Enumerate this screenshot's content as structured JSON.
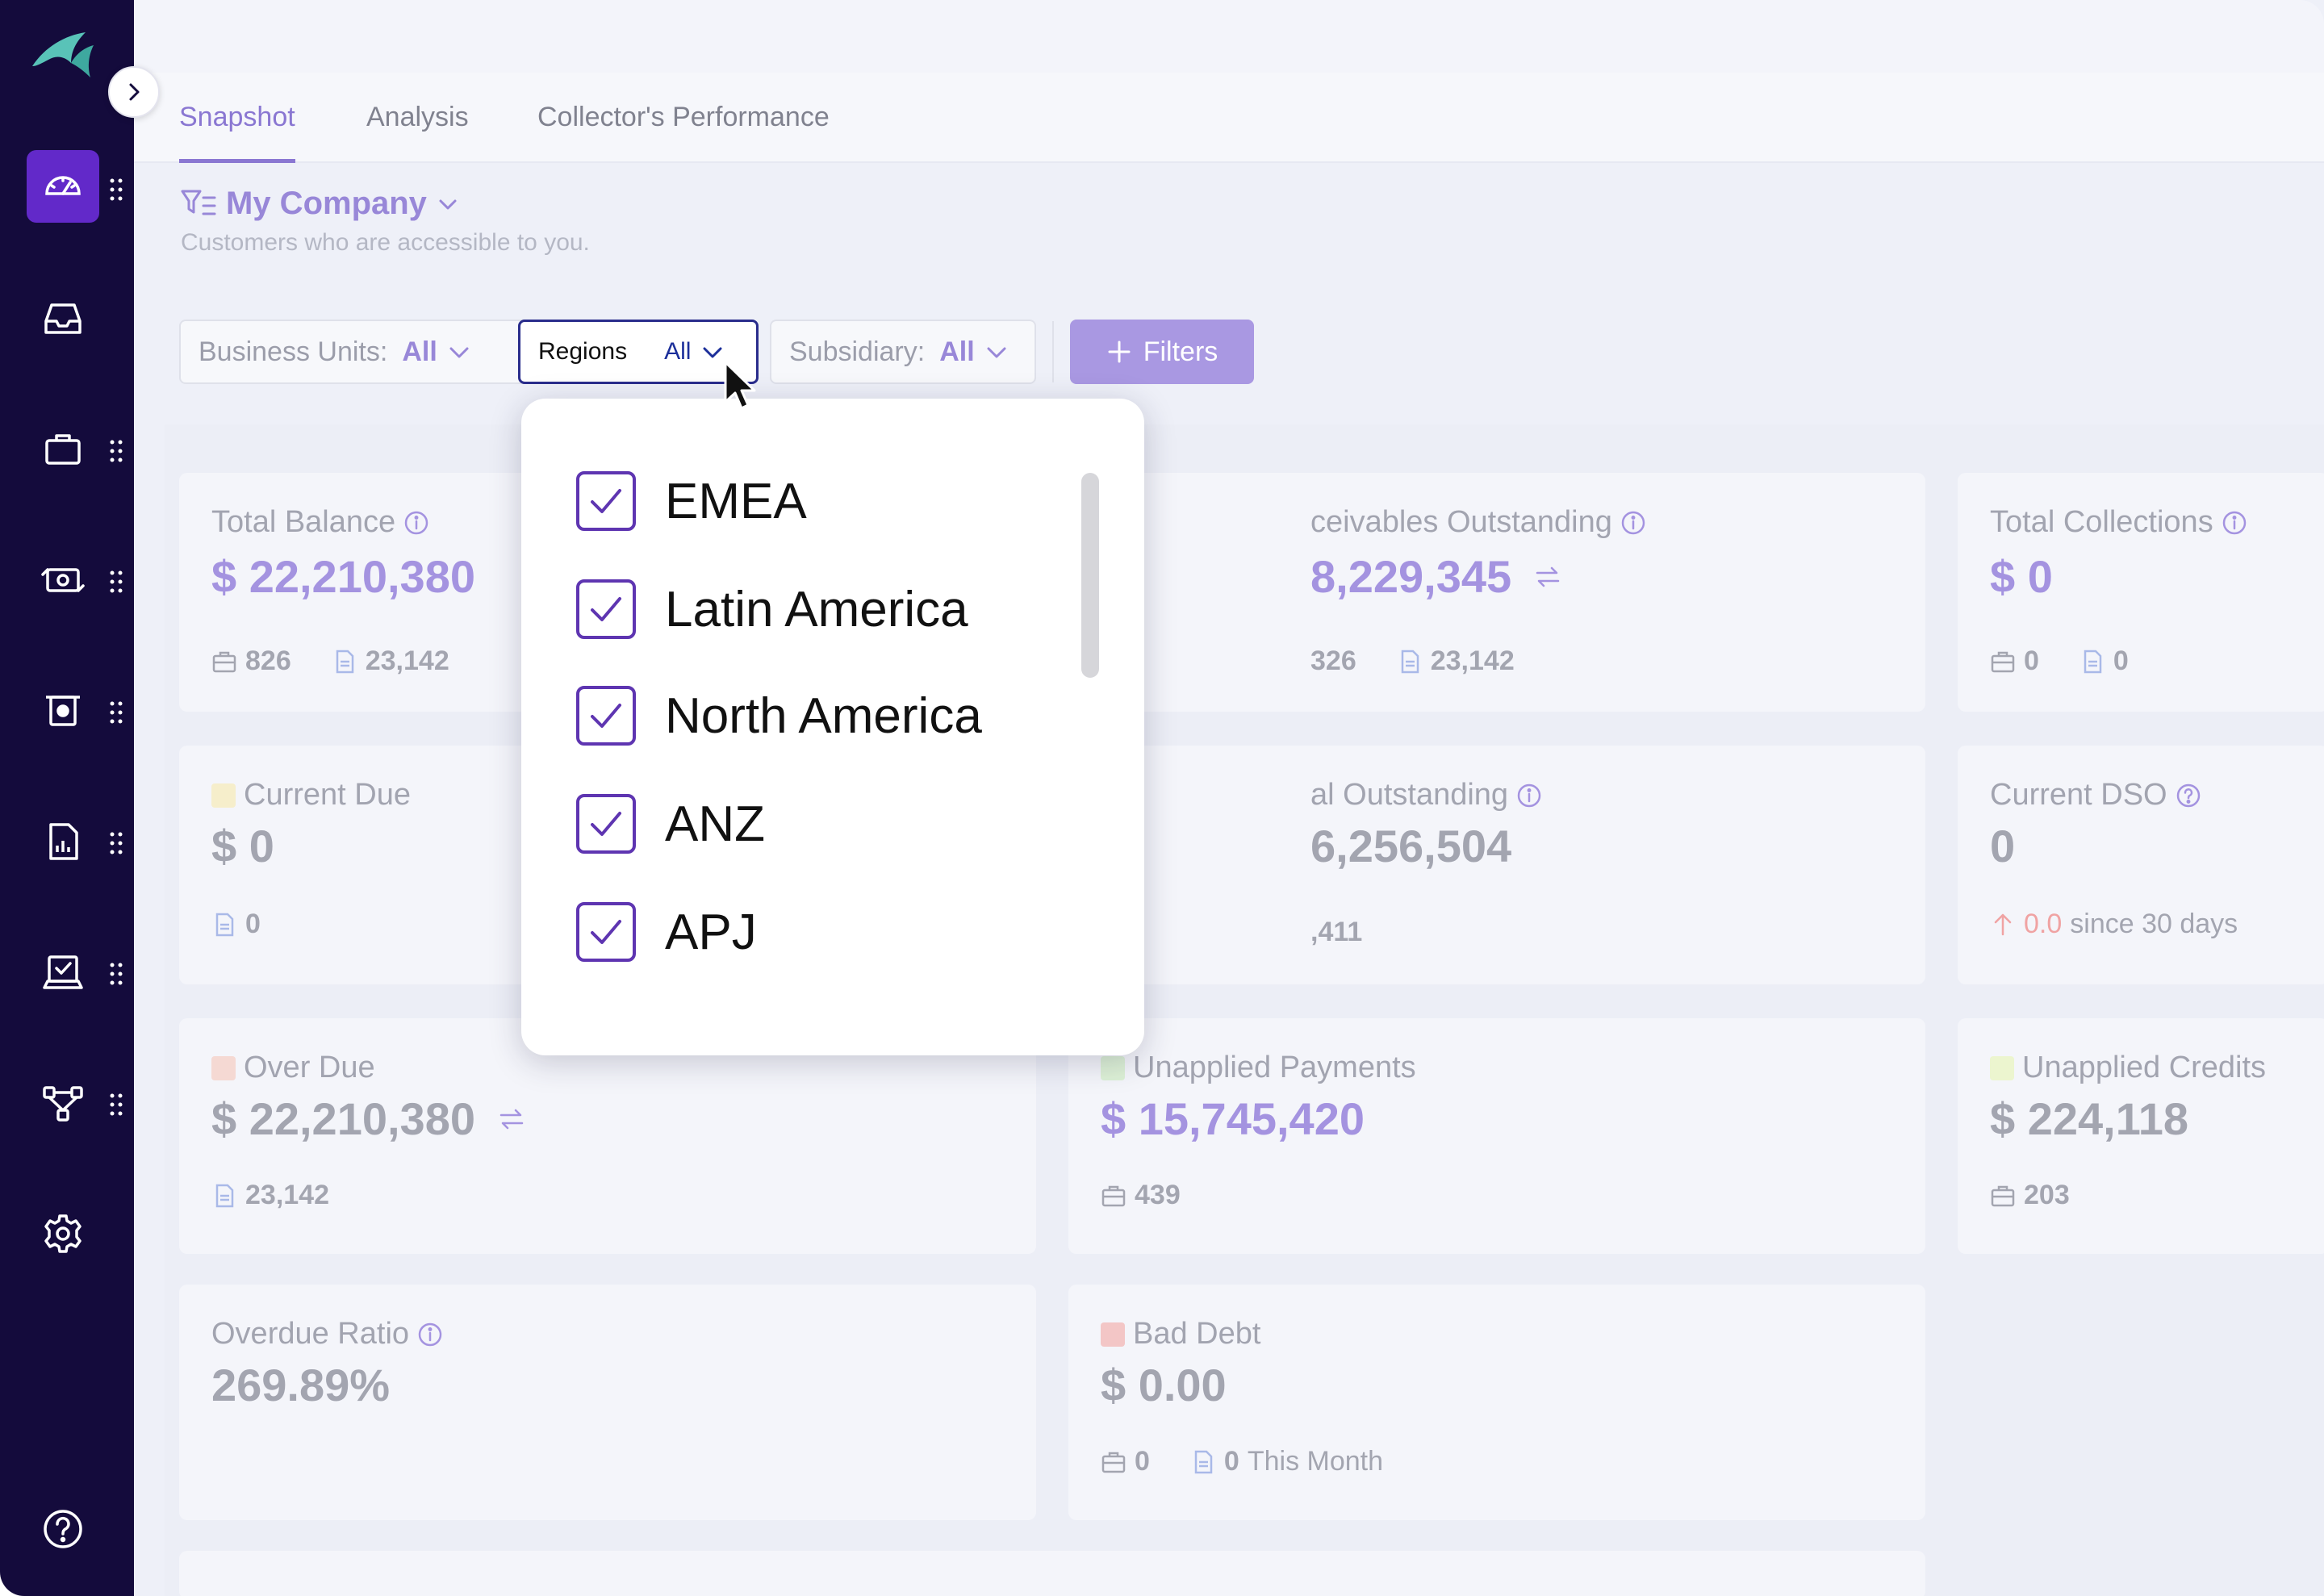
{
  "tabs": [
    {
      "label": "Snapshot",
      "active": true
    },
    {
      "label": "Analysis",
      "active": false
    },
    {
      "label": "Collector's Performance",
      "active": false
    }
  ],
  "company": {
    "title": "My Company",
    "subtitle": "Customers who are accessible to you."
  },
  "filters": {
    "business_units": {
      "label": "Business Units:",
      "value": "All"
    },
    "regions": {
      "label": "Regions",
      "value": "All"
    },
    "subsidiary": {
      "label": "Subsidiary:",
      "value": "All"
    },
    "add_button": "Filters"
  },
  "region_options": [
    {
      "label": "EMEA",
      "checked": true
    },
    {
      "label": "Latin America",
      "checked": true
    },
    {
      "label": "North America",
      "checked": true
    },
    {
      "label": "ANZ",
      "checked": true
    },
    {
      "label": "APJ",
      "checked": true
    }
  ],
  "cards": {
    "total_balance": {
      "title": "Total Balance",
      "value": "$ 22,210,380",
      "customers": "826",
      "invoices": "23,142"
    },
    "receivables_outstanding": {
      "title": "ceivables Outstanding",
      "value": "8,229,345",
      "customers": "326",
      "invoices": "23,142"
    },
    "total_collections": {
      "title": "Total Collections",
      "value": "$ 0",
      "customers": "0",
      "invoices": "0"
    },
    "current_due": {
      "title": "Current Due",
      "value": "$ 0",
      "invoices": "0",
      "swatch": "#f6eecb"
    },
    "total_outstanding": {
      "title": "al Outstanding",
      "value": "6,256,504",
      "invoices": ",411"
    },
    "current_dso": {
      "title": "Current DSO",
      "value": "0",
      "change": "0.0",
      "since": "since 30 days"
    },
    "over_due": {
      "title": "Over Due",
      "value": "$ 22,210,380",
      "invoices": "23,142",
      "swatch": "#f5d9d3"
    },
    "unapplied_payments": {
      "title": "Unapplied Payments",
      "value": "$ 15,745,420",
      "customers": "439",
      "swatch": "#ddf1d6"
    },
    "unapplied_credits": {
      "title": "Unapplied Credits",
      "value": "$ 224,118",
      "customers": "203",
      "swatch": "#ecf5cf"
    },
    "overdue_ratio": {
      "title": "Overdue Ratio",
      "value": "269.89%"
    },
    "bad_debt": {
      "title": "Bad Debt",
      "value": "$ 0.00",
      "customers": "0",
      "invoices": "0",
      "period": "This Month",
      "swatch": "#f3c6c6"
    }
  },
  "colors": {
    "sidebar": "#140b3c",
    "accent": "#6229c9",
    "accent_light": "#a493e0",
    "checkbox": "#5e35b1"
  },
  "sidebar_icons": [
    "dashboard-icon",
    "inbox-icon",
    "briefcase-icon",
    "payments-icon",
    "deposit-icon",
    "report-icon",
    "approval-icon",
    "workflow-icon",
    "settings-icon",
    "help-icon"
  ]
}
